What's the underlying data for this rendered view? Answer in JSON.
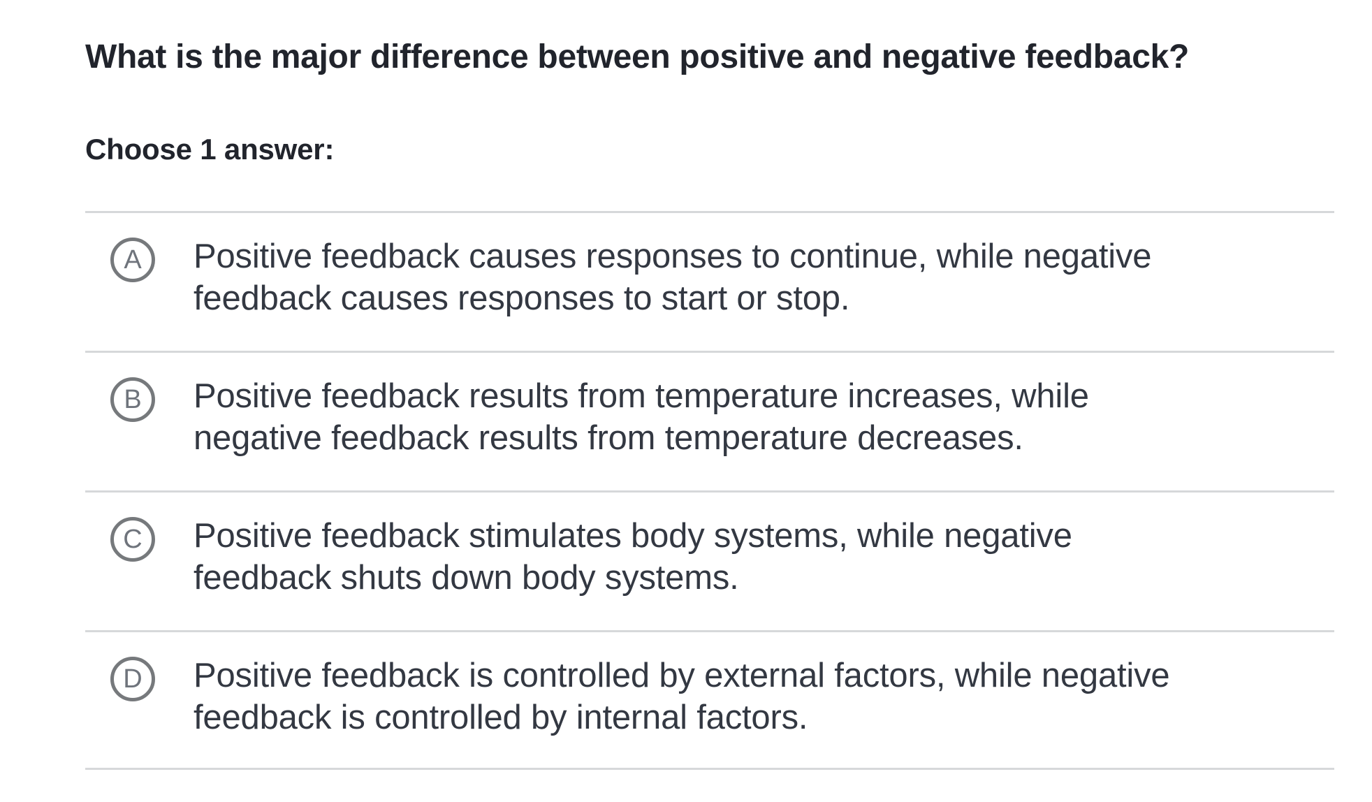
{
  "question": {
    "title": "What is the major difference between positive and negative feedback?",
    "prompt": "Choose 1 answer:"
  },
  "options": [
    {
      "letter": "A",
      "text": "Positive feedback causes responses to continue, while negative feedback causes responses to start or stop.",
      "lines": [
        "Positive feedback causes responses to continue, while negative",
        "feedback causes responses to start or stop."
      ],
      "selected": false
    },
    {
      "letter": "B",
      "text": "Positive feedback results from temperature increases, while negative feedback results from temperature decreases.",
      "lines": [
        "Positive feedback results from temperature increases, while",
        "negative feedback results from temperature decreases."
      ],
      "selected": false
    },
    {
      "letter": "C",
      "text": "Positive feedback stimulates body systems, while negative feedback shuts down body systems.",
      "lines": [
        "Positive feedback stimulates body systems, while negative",
        "feedback shuts down body systems."
      ],
      "selected": false
    },
    {
      "letter": "D",
      "text": "Positive feedback is controlled by external factors, while negative feedback is controlled by internal factors.",
      "lines": [
        "Positive feedback is controlled by external factors, while negative",
        "feedback is controlled by internal factors."
      ],
      "selected": false
    }
  ],
  "colors": {
    "text_primary": "#21242c",
    "option_text": "#333842",
    "divider": "#d6d8da",
    "badge_border": "#76797c",
    "badge_letter": "#6f747c",
    "background": "#ffffff"
  }
}
